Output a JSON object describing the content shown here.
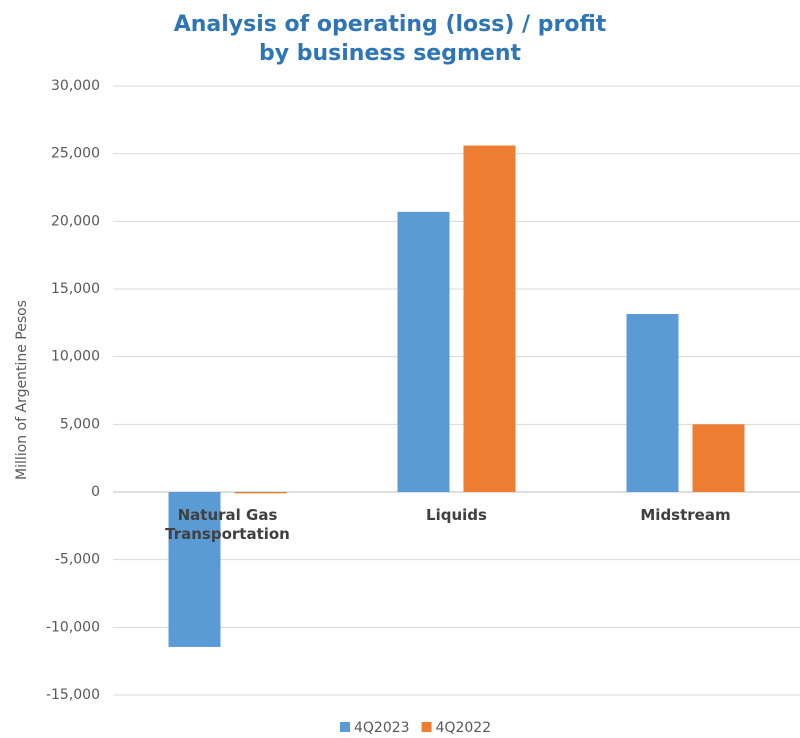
{
  "chart_data": {
    "type": "bar",
    "title": [
      "Analysis of operating (loss) / profit",
      "by business segment"
    ],
    "y_label": "Million of Argentine Pesos",
    "categories": [
      "Natural Gas Transportation",
      "Liquids",
      "Midstream"
    ],
    "series": [
      {
        "name": "4Q2023",
        "color": "#5b9bd5",
        "values": [
          -11450,
          20700,
          13150
        ]
      },
      {
        "name": "4Q2022",
        "color": "#ed7d31",
        "values": [
          -100,
          25600,
          5000
        ]
      }
    ],
    "ylim": [
      -15000,
      30000
    ],
    "yticks": [
      {
        "value": -15000,
        "label": "-15,000"
      },
      {
        "value": -10000,
        "label": "-10,000"
      },
      {
        "value": -5000,
        "label": "-5,000"
      },
      0,
      {
        "value": 5000,
        "label": "5,000"
      },
      {
        "value": 10000,
        "label": "10,000"
      },
      {
        "value": 15000,
        "label": "15,000"
      },
      {
        "value": 20000,
        "label": "20,000"
      },
      {
        "value": 25000,
        "label": "25,000"
      },
      {
        "value": 30000,
        "label": "30,000"
      }
    ],
    "grid": true,
    "legend": "bottom"
  }
}
